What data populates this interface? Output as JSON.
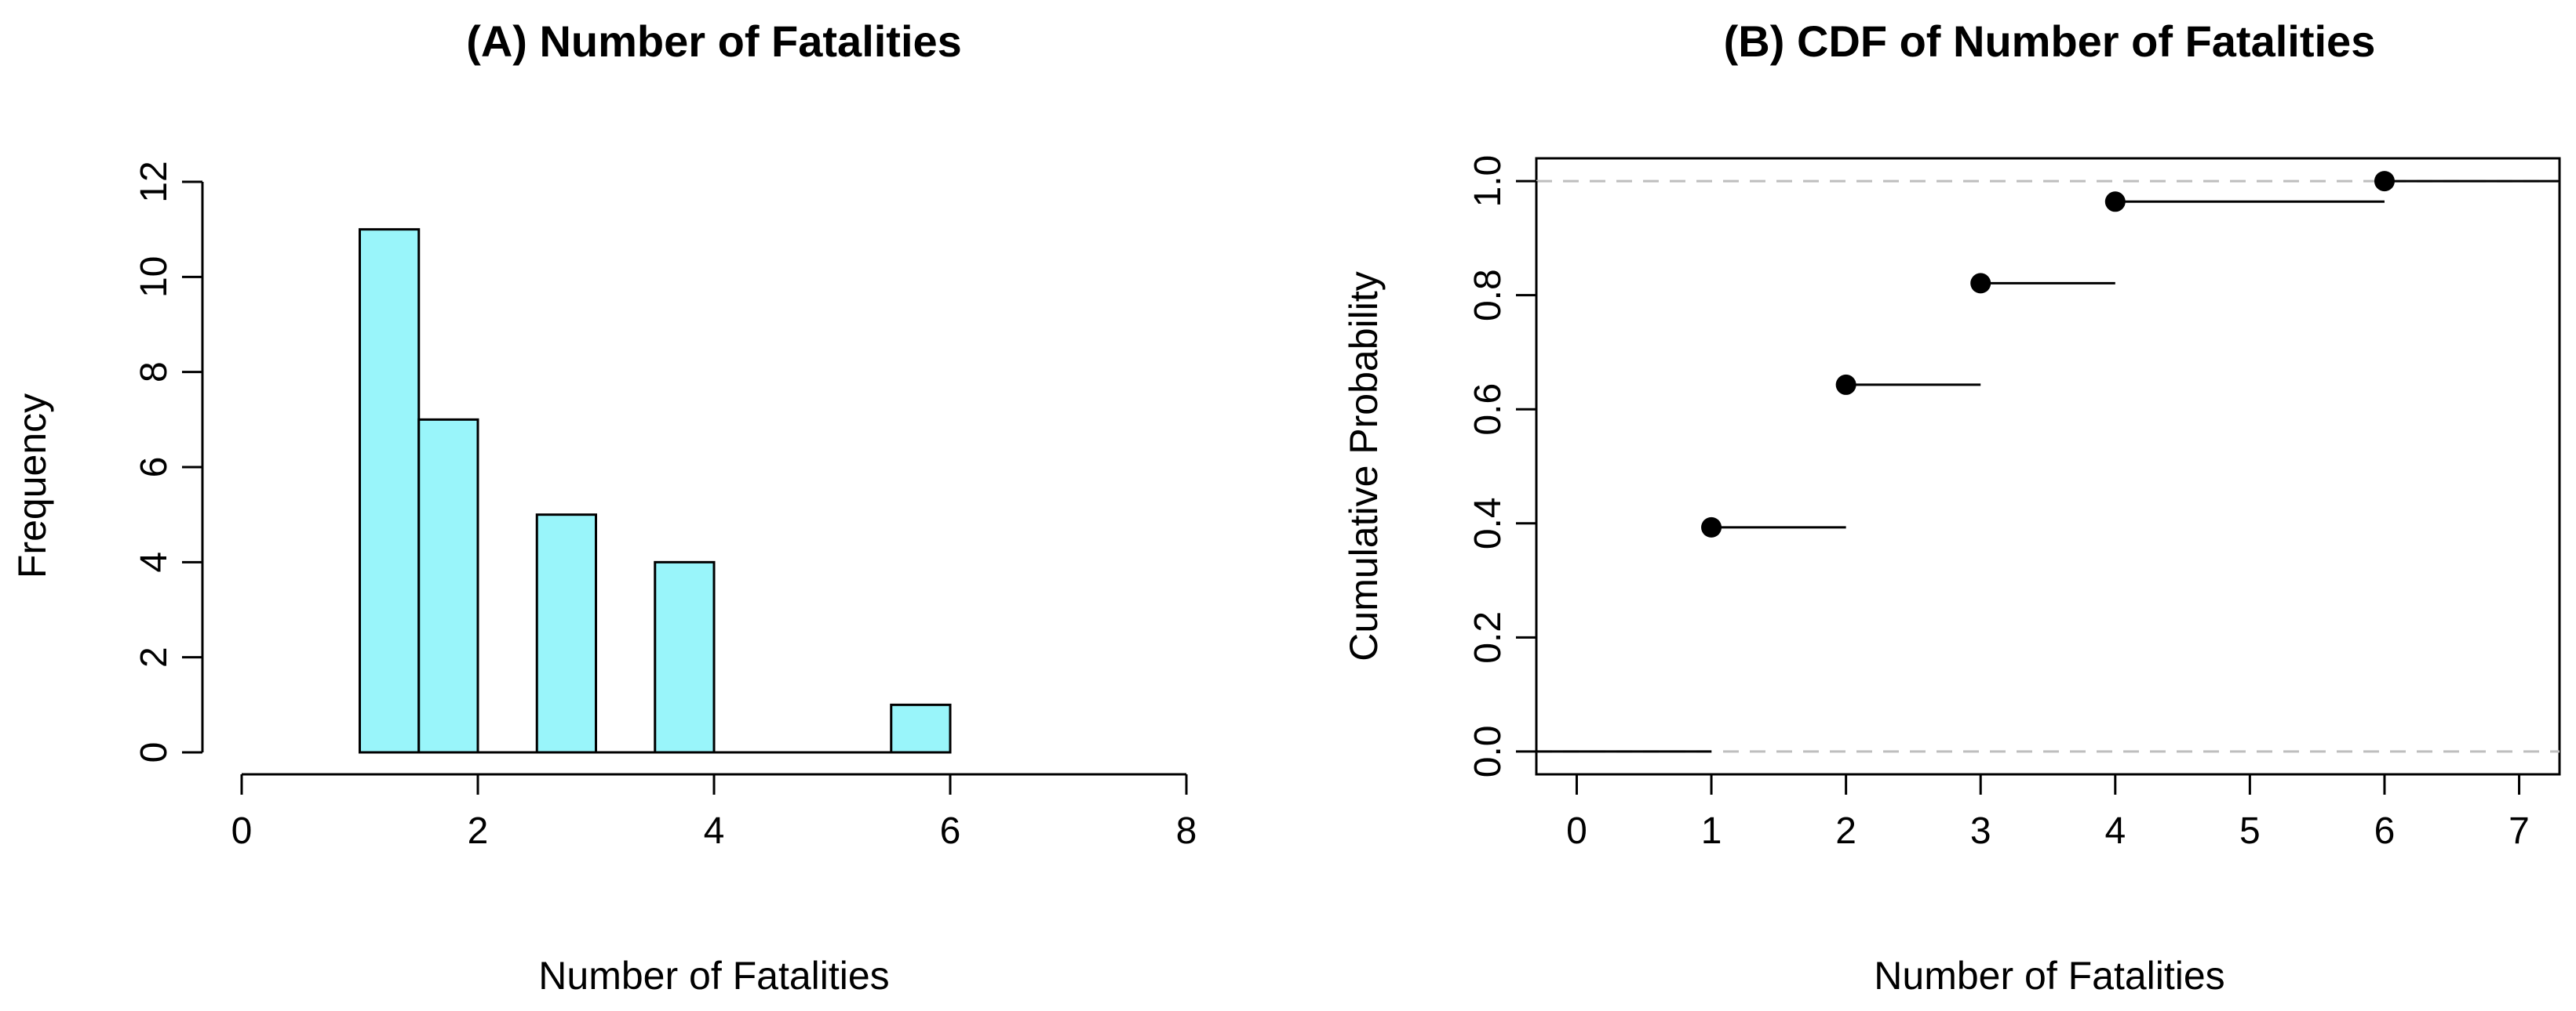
{
  "chart_data": [
    {
      "type": "bar",
      "title": "(A) Number of Fatalities",
      "xlabel": "Number of Fatalities",
      "ylabel": "Frequency",
      "xlim": [
        0,
        8
      ],
      "ylim": [
        0,
        12
      ],
      "xticks": [
        "0",
        "2",
        "4",
        "6",
        "8"
      ],
      "yticks": [
        "0",
        "2",
        "4",
        "6",
        "8",
        "10",
        "12"
      ],
      "bins": [
        {
          "x0": 1.0,
          "x1": 1.5,
          "value": 11
        },
        {
          "x0": 1.5,
          "x1": 2.0,
          "value": 7
        },
        {
          "x0": 2.5,
          "x1": 3.0,
          "value": 5
        },
        {
          "x0": 3.5,
          "x1": 4.0,
          "value": 4
        },
        {
          "x0": 5.5,
          "x1": 6.0,
          "value": 1
        }
      ],
      "bar_color": "#99F5FA"
    },
    {
      "type": "line",
      "title": "(B) CDF of Number of Fatalities",
      "xlabel": "Number of Fatalities",
      "ylabel": "Cumulative Probability",
      "xlim": [
        -0.3,
        7.3
      ],
      "ylim": [
        -0.04,
        1.04
      ],
      "xticks": [
        "0",
        "1",
        "2",
        "3",
        "4",
        "5",
        "6",
        "7"
      ],
      "yticks": [
        "0.0",
        "0.2",
        "0.4",
        "0.6",
        "0.8",
        "1.0"
      ],
      "reference_lines": [
        0,
        1
      ],
      "steps": [
        {
          "x": 1,
          "y": 0.393,
          "x_end": 2
        },
        {
          "x": 2,
          "y": 0.643,
          "x_end": 3
        },
        {
          "x": 3,
          "y": 0.821,
          "x_end": 4
        },
        {
          "x": 4,
          "y": 0.964,
          "x_end": 6
        },
        {
          "x": 6,
          "y": 1.0,
          "x_end": 7.3
        }
      ],
      "start_segment": {
        "x0": -0.3,
        "x1": 1,
        "y": 0
      },
      "reference_line_color": "#BEBEBE"
    }
  ]
}
